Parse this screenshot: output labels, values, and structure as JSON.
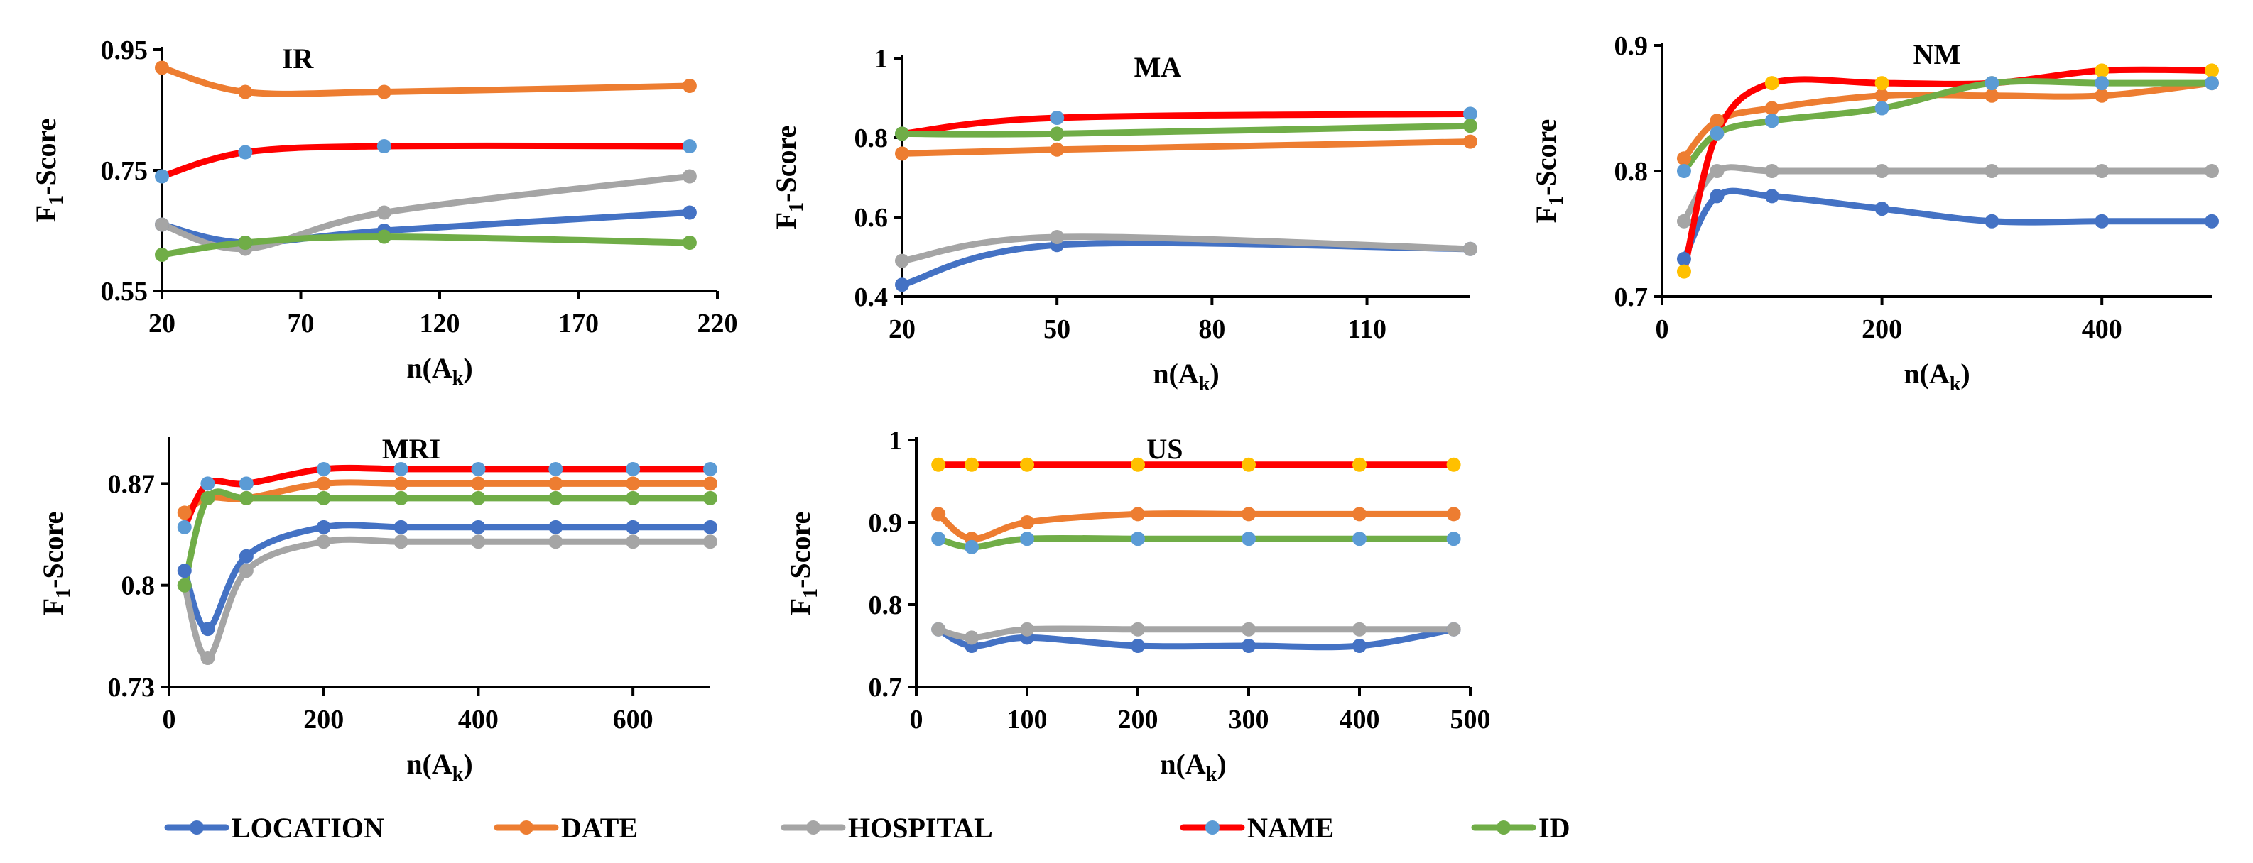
{
  "colors": {
    "LOCATION": "#4472C4",
    "DATE": "#ED7D31",
    "HOSPITAL": "#A5A5A5",
    "NAME": "#FF0000",
    "ID": "#70AD47",
    "marker_blue": "#5B9BD5",
    "marker_gold": "#FFC000"
  },
  "legend": {
    "items": [
      {
        "label": "LOCATION",
        "key": "LOCATION"
      },
      {
        "label": "DATE",
        "key": "DATE"
      },
      {
        "label": "HOSPITAL",
        "key": "HOSPITAL"
      },
      {
        "label": "NAME",
        "key": "NAME"
      },
      {
        "label": "ID",
        "key": "ID"
      }
    ]
  },
  "chart_data": [
    {
      "type": "line",
      "title": "IR",
      "ylabel": "F1-Score",
      "xlabel": "n(Ak)",
      "xlim": [
        20,
        220
      ],
      "ylim": [
        0.55,
        0.95
      ],
      "xticks": [
        20,
        70,
        120,
        170,
        220
      ],
      "yticks": [
        0.55,
        0.75,
        0.95
      ],
      "ytick_labels": [
        "0.55",
        "0.75",
        "0.95"
      ],
      "grid": false,
      "series": [
        {
          "name": "LOCATION",
          "marker": "LOCATION",
          "x": [
            20,
            50,
            100,
            210
          ],
          "y": [
            0.66,
            0.63,
            0.65,
            0.68
          ]
        },
        {
          "name": "DATE",
          "marker": "DATE",
          "x": [
            20,
            50,
            100,
            210
          ],
          "y": [
            0.92,
            0.88,
            0.88,
            0.89
          ]
        },
        {
          "name": "HOSPITAL",
          "marker": "HOSPITAL",
          "x": [
            20,
            50,
            100,
            210
          ],
          "y": [
            0.66,
            0.62,
            0.68,
            0.74
          ]
        },
        {
          "name": "NAME",
          "marker": "marker_blue",
          "x": [
            20,
            50,
            100,
            210
          ],
          "y": [
            0.74,
            0.78,
            0.79,
            0.79
          ]
        },
        {
          "name": "ID",
          "marker": "ID",
          "x": [
            20,
            50,
            100,
            210
          ],
          "y": [
            0.61,
            0.63,
            0.64,
            0.63
          ]
        }
      ]
    },
    {
      "type": "line",
      "title": "MA",
      "ylabel": "F1-Score",
      "xlabel": "n(Ak)",
      "xlim": [
        20,
        130
      ],
      "ylim": [
        0.4,
        1.0
      ],
      "xticks": [
        20,
        50,
        80,
        110
      ],
      "yticks": [
        0.4,
        0.6,
        0.8,
        1.0
      ],
      "ytick_labels": [
        "0.4",
        "0.6",
        "0.8",
        "1"
      ],
      "grid": false,
      "series": [
        {
          "name": "LOCATION",
          "marker": "LOCATION",
          "x": [
            20,
            50,
            130
          ],
          "y": [
            0.43,
            0.53,
            0.52
          ]
        },
        {
          "name": "DATE",
          "marker": "DATE",
          "x": [
            20,
            50,
            130
          ],
          "y": [
            0.76,
            0.77,
            0.79
          ]
        },
        {
          "name": "HOSPITAL",
          "marker": "HOSPITAL",
          "x": [
            20,
            50,
            130
          ],
          "y": [
            0.49,
            0.55,
            0.52
          ]
        },
        {
          "name": "NAME",
          "marker": "marker_blue",
          "x": [
            20,
            50,
            130
          ],
          "y": [
            0.81,
            0.85,
            0.86
          ]
        },
        {
          "name": "ID",
          "marker": "ID",
          "x": [
            20,
            50,
            130
          ],
          "y": [
            0.81,
            0.81,
            0.83
          ]
        }
      ]
    },
    {
      "type": "line",
      "title": "NM",
      "ylabel": "F1-Score",
      "xlabel": "n(Ak)",
      "xlim": [
        0,
        500
      ],
      "ylim": [
        0.7,
        0.9
      ],
      "xticks": [
        0,
        200,
        400
      ],
      "yticks": [
        0.7,
        0.8,
        0.9
      ],
      "ytick_labels": [
        "0.7",
        "0.8",
        "0.9"
      ],
      "grid": false,
      "series": [
        {
          "name": "LOCATION",
          "marker": "LOCATION",
          "x": [
            20,
            50,
            100,
            200,
            300,
            400,
            500
          ],
          "y": [
            0.73,
            0.78,
            0.78,
            0.77,
            0.76,
            0.76,
            0.76
          ]
        },
        {
          "name": "DATE",
          "marker": "DATE",
          "x": [
            20,
            50,
            100,
            200,
            300,
            400,
            500
          ],
          "y": [
            0.81,
            0.84,
            0.85,
            0.86,
            0.86,
            0.86,
            0.87
          ]
        },
        {
          "name": "HOSPITAL",
          "marker": "HOSPITAL",
          "x": [
            20,
            50,
            100,
            200,
            300,
            400,
            500
          ],
          "y": [
            0.76,
            0.8,
            0.8,
            0.8,
            0.8,
            0.8,
            0.8
          ]
        },
        {
          "name": "NAME",
          "marker": "marker_gold",
          "x": [
            20,
            50,
            100,
            200,
            300,
            400,
            500
          ],
          "y": [
            0.72,
            0.83,
            0.87,
            0.87,
            0.87,
            0.88,
            0.88
          ]
        },
        {
          "name": "ID",
          "marker": "marker_blue",
          "x": [
            20,
            50,
            100,
            200,
            300,
            400,
            500
          ],
          "y": [
            0.8,
            0.83,
            0.84,
            0.85,
            0.87,
            0.87,
            0.87
          ]
        }
      ]
    },
    {
      "type": "line",
      "title": "MRI",
      "ylabel": "F1-Score",
      "xlabel": "n(Ak)",
      "xlim": [
        0,
        700
      ],
      "ylim": [
        0.73,
        0.9
      ],
      "xticks": [
        0,
        200,
        400,
        600
      ],
      "yticks": [
        0.73,
        0.8,
        0.87
      ],
      "ytick_labels": [
        "0.73",
        "0.8",
        "0.87"
      ],
      "grid": false,
      "series": [
        {
          "name": "LOCATION",
          "marker": "LOCATION",
          "x": [
            20,
            50,
            100,
            200,
            300,
            400,
            500,
            600,
            700
          ],
          "y": [
            0.81,
            0.77,
            0.82,
            0.84,
            0.84,
            0.84,
            0.84,
            0.84,
            0.84
          ]
        },
        {
          "name": "DATE",
          "marker": "DATE",
          "x": [
            20,
            50,
            100,
            200,
            300,
            400,
            500,
            600,
            700
          ],
          "y": [
            0.85,
            0.86,
            0.86,
            0.87,
            0.87,
            0.87,
            0.87,
            0.87,
            0.87
          ]
        },
        {
          "name": "HOSPITAL",
          "marker": "HOSPITAL",
          "x": [
            20,
            50,
            100,
            200,
            300,
            400,
            500,
            600,
            700
          ],
          "y": [
            0.8,
            0.75,
            0.81,
            0.83,
            0.83,
            0.83,
            0.83,
            0.83,
            0.83
          ]
        },
        {
          "name": "NAME",
          "marker": "marker_blue",
          "x": [
            20,
            50,
            100,
            200,
            300,
            400,
            500,
            600,
            700
          ],
          "y": [
            0.84,
            0.87,
            0.87,
            0.88,
            0.88,
            0.88,
            0.88,
            0.88,
            0.88
          ]
        },
        {
          "name": "ID",
          "marker": "ID",
          "x": [
            20,
            50,
            100,
            200,
            300,
            400,
            500,
            600,
            700
          ],
          "y": [
            0.8,
            0.86,
            0.86,
            0.86,
            0.86,
            0.86,
            0.86,
            0.86,
            0.86
          ]
        }
      ]
    },
    {
      "type": "line",
      "title": "US",
      "ylabel": "F1-Score",
      "xlabel": "n(Ak)",
      "xlim": [
        0,
        500
      ],
      "ylim": [
        0.7,
        1.0
      ],
      "xticks": [
        0,
        100,
        200,
        300,
        400,
        500
      ],
      "yticks": [
        0.7,
        0.8,
        0.9,
        1.0
      ],
      "ytick_labels": [
        "0.7",
        "0.8",
        "0.9",
        "1"
      ],
      "grid": false,
      "series": [
        {
          "name": "LOCATION",
          "marker": "LOCATION",
          "x": [
            20,
            50,
            100,
            200,
            300,
            400,
            485
          ],
          "y": [
            0.77,
            0.75,
            0.76,
            0.75,
            0.75,
            0.75,
            0.77
          ]
        },
        {
          "name": "DATE",
          "marker": "DATE",
          "x": [
            20,
            50,
            100,
            200,
            300,
            400,
            485
          ],
          "y": [
            0.91,
            0.88,
            0.9,
            0.91,
            0.91,
            0.91,
            0.91
          ]
        },
        {
          "name": "HOSPITAL",
          "marker": "HOSPITAL",
          "x": [
            20,
            50,
            100,
            200,
            300,
            400,
            485
          ],
          "y": [
            0.77,
            0.76,
            0.77,
            0.77,
            0.77,
            0.77,
            0.77
          ]
        },
        {
          "name": "NAME",
          "marker": "marker_gold",
          "x": [
            20,
            50,
            100,
            200,
            300,
            400,
            485
          ],
          "y": [
            0.97,
            0.97,
            0.97,
            0.97,
            0.97,
            0.97,
            0.97
          ]
        },
        {
          "name": "ID",
          "marker": "marker_blue",
          "x": [
            20,
            50,
            100,
            200,
            300,
            400,
            485
          ],
          "y": [
            0.88,
            0.87,
            0.88,
            0.88,
            0.88,
            0.88,
            0.88
          ]
        }
      ]
    }
  ]
}
